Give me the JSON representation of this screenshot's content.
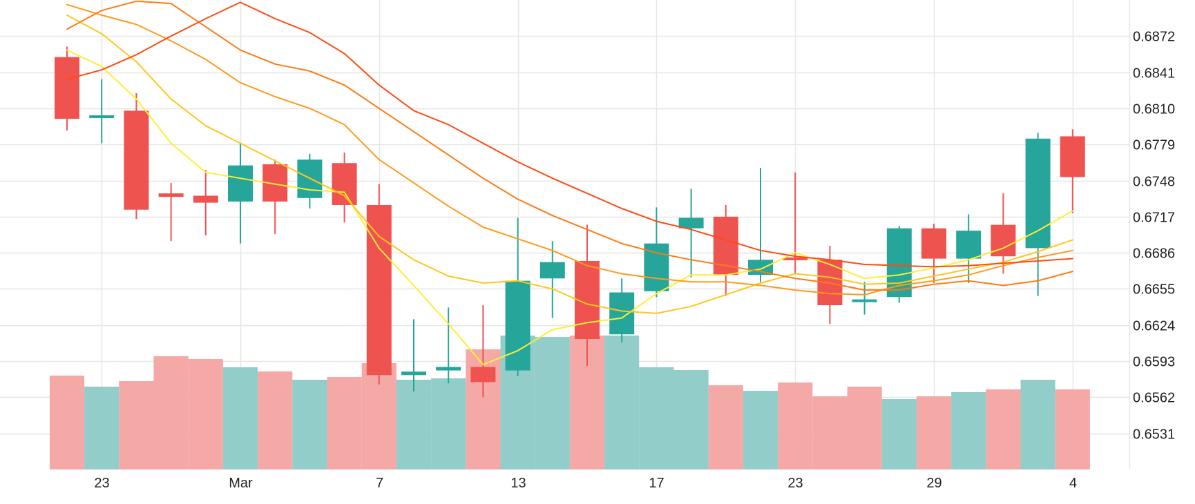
{
  "chart_data": {
    "type": "candlestick",
    "y_axis": {
      "position": "right",
      "ticks": [
        0.6872,
        0.6841,
        0.681,
        0.6779,
        0.6748,
        0.6717,
        0.6686,
        0.6655,
        0.6624,
        0.6593,
        0.6562,
        0.6531
      ],
      "tick_labels": [
        "0.6872",
        "0.6841",
        "0.6810",
        "0.6779",
        "0.6748",
        "0.6717",
        "0.6686",
        "0.6655",
        "0.6624",
        "0.6593",
        "0.6562",
        "0.6531"
      ],
      "range": [
        0.65,
        0.6903
      ]
    },
    "x_axis": {
      "tick_labels": [
        {
          "label": "23",
          "index": 1
        },
        {
          "label": "Mar",
          "index": 5
        },
        {
          "label": "7",
          "index": 9
        },
        {
          "label": "13",
          "index": 13
        },
        {
          "label": "17",
          "index": 17
        },
        {
          "label": "23",
          "index": 21
        },
        {
          "label": "29",
          "index": 25
        },
        {
          "label": "4",
          "index": 29
        }
      ]
    },
    "grid": true,
    "colors": {
      "up": "#26a69a",
      "down": "#ef5350",
      "volume_up": "#92cdca",
      "volume_down": "#f5a9a7",
      "grid": "#e6e6e6"
    },
    "candles": [
      {
        "o": 0.6854,
        "h": 0.6863,
        "l": 0.6791,
        "c": 0.6801
      },
      {
        "o": 0.6802,
        "h": 0.6835,
        "l": 0.678,
        "c": 0.6804
      },
      {
        "o": 0.6808,
        "h": 0.6823,
        "l": 0.6715,
        "c": 0.6723
      },
      {
        "o": 0.6737,
        "h": 0.6746,
        "l": 0.6696,
        "c": 0.6734
      },
      {
        "o": 0.6735,
        "h": 0.6757,
        "l": 0.6701,
        "c": 0.6729
      },
      {
        "o": 0.673,
        "h": 0.678,
        "l": 0.6694,
        "c": 0.6761
      },
      {
        "o": 0.6762,
        "h": 0.6766,
        "l": 0.6702,
        "c": 0.673
      },
      {
        "o": 0.6733,
        "h": 0.6771,
        "l": 0.6724,
        "c": 0.6766
      },
      {
        "o": 0.6763,
        "h": 0.6772,
        "l": 0.6712,
        "c": 0.6727
      },
      {
        "o": 0.6727,
        "h": 0.6745,
        "l": 0.6573,
        "c": 0.6581
      },
      {
        "o": 0.6581,
        "h": 0.6629,
        "l": 0.6567,
        "c": 0.6584
      },
      {
        "o": 0.6585,
        "h": 0.6639,
        "l": 0.6574,
        "c": 0.6588
      },
      {
        "o": 0.6588,
        "h": 0.6641,
        "l": 0.6562,
        "c": 0.6575
      },
      {
        "o": 0.6585,
        "h": 0.6716,
        "l": 0.658,
        "c": 0.6662
      },
      {
        "o": 0.6664,
        "h": 0.6696,
        "l": 0.663,
        "c": 0.6678
      },
      {
        "o": 0.6679,
        "h": 0.671,
        "l": 0.6589,
        "c": 0.6612
      },
      {
        "o": 0.6616,
        "h": 0.6664,
        "l": 0.6609,
        "c": 0.6652
      },
      {
        "o": 0.6653,
        "h": 0.6725,
        "l": 0.6648,
        "c": 0.6694
      },
      {
        "o": 0.6707,
        "h": 0.6741,
        "l": 0.6665,
        "c": 0.6716
      },
      {
        "o": 0.6717,
        "h": 0.6727,
        "l": 0.6649,
        "c": 0.6667
      },
      {
        "o": 0.6667,
        "h": 0.6759,
        "l": 0.6661,
        "c": 0.668
      },
      {
        "o": 0.6682,
        "h": 0.6755,
        "l": 0.6668,
        "c": 0.668
      },
      {
        "o": 0.668,
        "h": 0.6692,
        "l": 0.6625,
        "c": 0.6641
      },
      {
        "o": 0.6646,
        "h": 0.6661,
        "l": 0.6633,
        "c": 0.6646
      },
      {
        "o": 0.6648,
        "h": 0.6709,
        "l": 0.6643,
        "c": 0.6707
      },
      {
        "o": 0.6707,
        "h": 0.6711,
        "l": 0.666,
        "c": 0.6681
      },
      {
        "o": 0.6681,
        "h": 0.6719,
        "l": 0.666,
        "c": 0.6705
      },
      {
        "o": 0.671,
        "h": 0.6737,
        "l": 0.6668,
        "c": 0.6683
      },
      {
        "o": 0.669,
        "h": 0.6789,
        "l": 0.6649,
        "c": 0.6784
      },
      {
        "o": 0.6786,
        "h": 0.6792,
        "l": 0.672,
        "c": 0.6751
      }
    ],
    "volume": {
      "relative_values": [
        0.68,
        0.6,
        0.64,
        0.82,
        0.8,
        0.74,
        0.71,
        0.65,
        0.67,
        0.77,
        0.65,
        0.66,
        0.87,
        0.97,
        0.96,
        0.97,
        0.97,
        0.74,
        0.72,
        0.61,
        0.57,
        0.63,
        0.53,
        0.6,
        0.51,
        0.53,
        0.56,
        0.58,
        0.65,
        0.58
      ],
      "directions": [
        "down",
        "up",
        "down",
        "down",
        "down",
        "up",
        "down",
        "up",
        "down",
        "down",
        "up",
        "up",
        "down",
        "up",
        "up",
        "down",
        "up",
        "up",
        "up",
        "down",
        "up",
        "down",
        "down",
        "down",
        "up",
        "down",
        "up",
        "down",
        "up",
        "down"
      ]
    },
    "moving_averages": [
      {
        "color": "#ffee33",
        "values": [
          0.686,
          0.6846,
          0.6818,
          0.678,
          0.6755,
          0.675,
          0.6745,
          0.674,
          0.6738,
          0.669,
          0.6658,
          0.6625,
          0.659,
          0.6602,
          0.662,
          0.6626,
          0.663,
          0.6651,
          0.6667,
          0.6667,
          0.6672,
          0.6686,
          0.6676,
          0.6664,
          0.6667,
          0.6673,
          0.668,
          0.669,
          0.6705,
          0.6722
        ]
      },
      {
        "color": "#ffc61a",
        "values": [
          0.689,
          0.6874,
          0.685,
          0.6818,
          0.6795,
          0.678,
          0.6765,
          0.675,
          0.6735,
          0.67,
          0.668,
          0.6666,
          0.666,
          0.6662,
          0.6655,
          0.6642,
          0.6636,
          0.6634,
          0.664,
          0.665,
          0.666,
          0.6668,
          0.6665,
          0.6659,
          0.666,
          0.6666,
          0.6672,
          0.6678,
          0.6687,
          0.6697
        ]
      },
      {
        "color": "#ff9a1a",
        "values": [
          0.6899,
          0.689,
          0.6882,
          0.6868,
          0.6852,
          0.6832,
          0.682,
          0.681,
          0.6796,
          0.6766,
          0.6746,
          0.6726,
          0.6708,
          0.6698,
          0.6688,
          0.6675,
          0.6668,
          0.6664,
          0.6661,
          0.6661,
          0.6658,
          0.6654,
          0.6651,
          0.665,
          0.6658,
          0.6662,
          0.6667,
          0.6675,
          0.6682,
          0.6688
        ]
      },
      {
        "color": "#ff7a12",
        "values": [
          0.6878,
          0.6894,
          0.6902,
          0.69,
          0.688,
          0.686,
          0.6848,
          0.6842,
          0.683,
          0.681,
          0.679,
          0.677,
          0.675,
          0.6732,
          0.6718,
          0.6706,
          0.6694,
          0.6686,
          0.668,
          0.6675,
          0.667,
          0.6664,
          0.666,
          0.6654,
          0.6654,
          0.6659,
          0.6662,
          0.6658,
          0.6662,
          0.667
        ]
      },
      {
        "color": "#ff4a12",
        "values": [
          0.6835,
          0.6843,
          0.6856,
          0.6872,
          0.6887,
          0.6901,
          0.6887,
          0.6875,
          0.6857,
          0.683,
          0.6808,
          0.6796,
          0.678,
          0.6764,
          0.675,
          0.6737,
          0.6724,
          0.6713,
          0.6706,
          0.6697,
          0.6688,
          0.6683,
          0.668,
          0.6676,
          0.6675,
          0.6674,
          0.6675,
          0.6677,
          0.6679,
          0.6681
        ]
      }
    ]
  }
}
